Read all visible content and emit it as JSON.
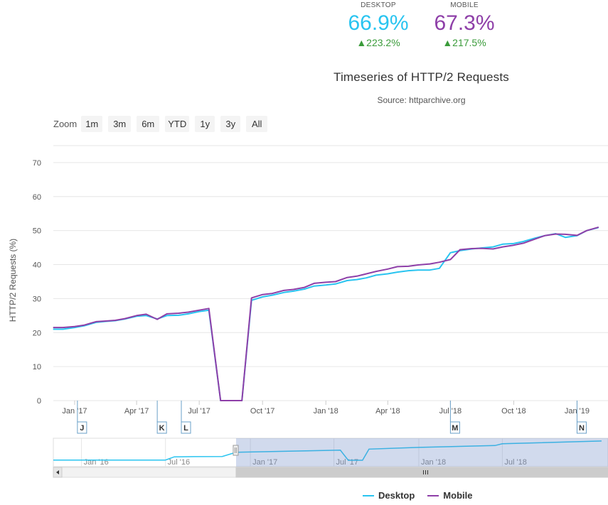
{
  "stats": {
    "desktop": {
      "label": "DESKTOP",
      "value": "66.9%",
      "change": "▲223.2%",
      "color": "#29c4f0"
    },
    "mobile": {
      "label": "MOBILE",
      "value": "67.3%",
      "change": "▲217.5%",
      "color": "#8e3fa8"
    }
  },
  "zoom": {
    "label": "Zoom",
    "buttons": [
      "1m",
      "3m",
      "6m",
      "YTD",
      "1y",
      "3y",
      "All"
    ]
  },
  "chart_data": {
    "type": "line",
    "title": "Timeseries of HTTP/2 Requests",
    "subtitle": "Source: httparchive.org",
    "ylabel": "HTTP/2 Requests (%)",
    "ylim": [
      0,
      75
    ],
    "yticks": [
      0,
      10,
      20,
      30,
      40,
      50,
      60,
      70
    ],
    "xlim": [
      "2016-12-01",
      "2019-02-15"
    ],
    "xticks": [
      {
        "date": "2017-01-01",
        "label": "Jan '17"
      },
      {
        "date": "2017-04-01",
        "label": "Apr '17"
      },
      {
        "date": "2017-07-01",
        "label": "Jul '17"
      },
      {
        "date": "2017-10-01",
        "label": "Oct '17"
      },
      {
        "date": "2018-01-01",
        "label": "Jan '18"
      },
      {
        "date": "2018-04-01",
        "label": "Apr '18"
      },
      {
        "date": "2018-07-01",
        "label": "Jul '18"
      },
      {
        "date": "2018-10-01",
        "label": "Oct '18"
      },
      {
        "date": "2019-01-01",
        "label": "Jan '19"
      }
    ],
    "grid": true,
    "legend_position": "bottom",
    "series": [
      {
        "name": "Desktop",
        "color": "#29c4f0",
        "points": [
          [
            "2016-12-01",
            21
          ],
          [
            "2016-12-15",
            21
          ],
          [
            "2017-01-01",
            21.5
          ],
          [
            "2017-01-15",
            22
          ],
          [
            "2017-02-01",
            23
          ],
          [
            "2017-02-15",
            23.3
          ],
          [
            "2017-03-01",
            23.5
          ],
          [
            "2017-03-15",
            24
          ],
          [
            "2017-04-01",
            24.8
          ],
          [
            "2017-04-15",
            25
          ],
          [
            "2017-05-01",
            24
          ],
          [
            "2017-05-15",
            25
          ],
          [
            "2017-06-01",
            25.1
          ],
          [
            "2017-06-15",
            25.5
          ],
          [
            "2017-07-01",
            26.2
          ],
          [
            "2017-07-15",
            26.6
          ],
          [
            "2017-08-01",
            0
          ],
          [
            "2017-08-15",
            0
          ],
          [
            "2017-09-01",
            0
          ],
          [
            "2017-09-15",
            29.5
          ],
          [
            "2017-10-01",
            30.5
          ],
          [
            "2017-10-15",
            31
          ],
          [
            "2017-11-01",
            31.8
          ],
          [
            "2017-11-15",
            32.2
          ],
          [
            "2017-12-01",
            32.8
          ],
          [
            "2017-12-15",
            33.7
          ],
          [
            "2018-01-01",
            34
          ],
          [
            "2018-01-15",
            34.3
          ],
          [
            "2018-02-01",
            35.3
          ],
          [
            "2018-02-15",
            35.6
          ],
          [
            "2018-03-01",
            36.1
          ],
          [
            "2018-03-15",
            36.9
          ],
          [
            "2018-04-01",
            37.3
          ],
          [
            "2018-04-15",
            37.8
          ],
          [
            "2018-05-01",
            38.2
          ],
          [
            "2018-05-15",
            38.4
          ],
          [
            "2018-06-01",
            38.4
          ],
          [
            "2018-06-15",
            38.9
          ],
          [
            "2018-07-01",
            43.5
          ],
          [
            "2018-07-15",
            44.1
          ],
          [
            "2018-08-01",
            44.6
          ],
          [
            "2018-08-15",
            44.9
          ],
          [
            "2018-09-01",
            45.2
          ],
          [
            "2018-09-15",
            46
          ],
          [
            "2018-10-01",
            46.2
          ],
          [
            "2018-10-15",
            46.8
          ],
          [
            "2018-11-01",
            47.8
          ],
          [
            "2018-11-15",
            48.5
          ],
          [
            "2018-12-01",
            49.1
          ],
          [
            "2018-12-15",
            48
          ],
          [
            "2019-01-01",
            48.5
          ],
          [
            "2019-01-15",
            50
          ],
          [
            "2019-02-01",
            50.9
          ]
        ]
      },
      {
        "name": "Mobile",
        "color": "#8e3fa8",
        "points": [
          [
            "2016-12-01",
            21.5
          ],
          [
            "2016-12-15",
            21.5
          ],
          [
            "2017-01-01",
            21.8
          ],
          [
            "2017-01-15",
            22.2
          ],
          [
            "2017-02-01",
            23.2
          ],
          [
            "2017-02-15",
            23.4
          ],
          [
            "2017-03-01",
            23.6
          ],
          [
            "2017-03-15",
            24.1
          ],
          [
            "2017-04-01",
            25
          ],
          [
            "2017-04-15",
            25.4
          ],
          [
            "2017-05-01",
            23.9
          ],
          [
            "2017-05-15",
            25.5
          ],
          [
            "2017-06-01",
            25.7
          ],
          [
            "2017-06-15",
            26
          ],
          [
            "2017-07-01",
            26.6
          ],
          [
            "2017-07-15",
            27.1
          ],
          [
            "2017-08-01",
            0
          ],
          [
            "2017-08-15",
            0
          ],
          [
            "2017-09-01",
            0
          ],
          [
            "2017-09-15",
            30.2
          ],
          [
            "2017-10-01",
            31.2
          ],
          [
            "2017-10-15",
            31.5
          ],
          [
            "2017-11-01",
            32.4
          ],
          [
            "2017-11-15",
            32.7
          ],
          [
            "2017-12-01",
            33.3
          ],
          [
            "2017-12-15",
            34.5
          ],
          [
            "2018-01-01",
            34.8
          ],
          [
            "2018-01-15",
            35
          ],
          [
            "2018-02-01",
            36.2
          ],
          [
            "2018-02-15",
            36.6
          ],
          [
            "2018-03-01",
            37.3
          ],
          [
            "2018-03-15",
            38
          ],
          [
            "2018-04-01",
            38.7
          ],
          [
            "2018-04-15",
            39.4
          ],
          [
            "2018-05-01",
            39.5
          ],
          [
            "2018-05-15",
            39.9
          ],
          [
            "2018-06-01",
            40.2
          ],
          [
            "2018-06-15",
            40.7
          ],
          [
            "2018-07-01",
            41.5
          ],
          [
            "2018-07-15",
            44.4
          ],
          [
            "2018-08-01",
            44.7
          ],
          [
            "2018-08-15",
            44.8
          ],
          [
            "2018-09-01",
            44.6
          ],
          [
            "2018-09-15",
            45.2
          ],
          [
            "2018-10-01",
            45.7
          ],
          [
            "2018-10-15",
            46.3
          ],
          [
            "2018-11-01",
            47.5
          ],
          [
            "2018-11-15",
            48.5
          ],
          [
            "2018-12-01",
            49
          ],
          [
            "2018-12-15",
            48.9
          ],
          [
            "2019-01-01",
            48.6
          ],
          [
            "2019-01-15",
            50
          ],
          [
            "2019-02-01",
            51
          ]
        ]
      }
    ],
    "flags": [
      {
        "date": "2017-01-05",
        "label": "J"
      },
      {
        "date": "2017-05-01",
        "label": "K"
      },
      {
        "date": "2017-06-05",
        "label": "L"
      },
      {
        "date": "2018-07-01",
        "label": "M"
      },
      {
        "date": "2019-01-01",
        "label": "N"
      }
    ],
    "navigator": {
      "xlim": [
        "2015-11-01",
        "2019-02-15"
      ],
      "xticks": [
        {
          "date": "2016-01-01",
          "label": "Jan '16"
        },
        {
          "date": "2016-07-01",
          "label": "Jul '16"
        },
        {
          "date": "2017-01-01",
          "label": "Jan '17"
        },
        {
          "date": "2017-07-01",
          "label": "Jul '17"
        },
        {
          "date": "2018-01-01",
          "label": "Jan '18"
        },
        {
          "date": "2018-07-01",
          "label": "Jul '18"
        }
      ],
      "selected_range": [
        "2016-12-01",
        "2019-02-15"
      ],
      "points": [
        [
          "2015-11-01",
          0.3
        ],
        [
          "2016-07-01",
          0.5
        ],
        [
          "2016-07-20",
          9
        ],
        [
          "2016-09-01",
          9.5
        ],
        [
          "2016-11-01",
          10
        ],
        [
          "2016-12-01",
          21
        ],
        [
          "2017-07-15",
          26.6
        ],
        [
          "2017-08-01",
          0
        ],
        [
          "2017-09-01",
          0
        ],
        [
          "2017-09-15",
          29.5
        ],
        [
          "2018-01-01",
          34
        ],
        [
          "2018-06-15",
          38.9
        ],
        [
          "2018-07-01",
          43.5
        ],
        [
          "2019-02-01",
          50.9
        ]
      ]
    }
  }
}
